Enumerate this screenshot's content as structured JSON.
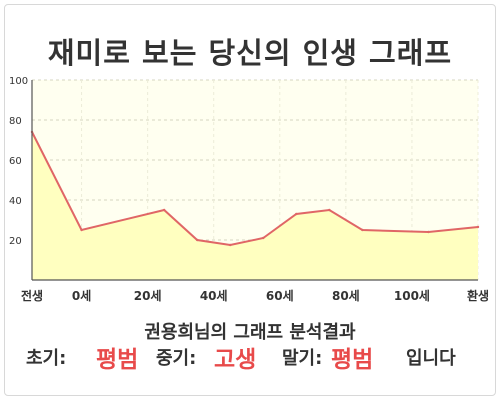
{
  "page": {
    "title": "재미로 보는 당신의 인생 그래프",
    "summary": "권용희님의 그래프 분석결과"
  },
  "verdict": {
    "early_label": "초기:",
    "early_value": "평범",
    "middle_label": "중기:",
    "middle_value": "고생",
    "late_label": "말기:",
    "late_value": "평범",
    "suffix": "입니다"
  },
  "colors": {
    "line": "#e06666",
    "fill": "#ffffc0",
    "plot_bg": "#fffff0",
    "highlight": "#e84a4a"
  },
  "chart_data": {
    "type": "area",
    "x": [
      -15,
      0,
      25,
      35,
      45,
      55,
      65,
      75,
      85,
      105,
      120
    ],
    "y": [
      74,
      25,
      35,
      20,
      17.5,
      21,
      33,
      35,
      25,
      24,
      26.5
    ],
    "xlim": [
      -15,
      120
    ],
    "ylim": [
      0,
      100
    ],
    "yticks": [
      20,
      40,
      60,
      80,
      100
    ],
    "xtick_labels": [
      {
        "x": -15,
        "label": "전생"
      },
      {
        "x": 0,
        "label": "0세"
      },
      {
        "x": 20,
        "label": "20세"
      },
      {
        "x": 40,
        "label": "40세"
      },
      {
        "x": 60,
        "label": "60세"
      },
      {
        "x": 80,
        "label": "80세"
      },
      {
        "x": 100,
        "label": "100세"
      },
      {
        "x": 120,
        "label": "환생"
      }
    ],
    "grid": true,
    "legend": "none"
  }
}
